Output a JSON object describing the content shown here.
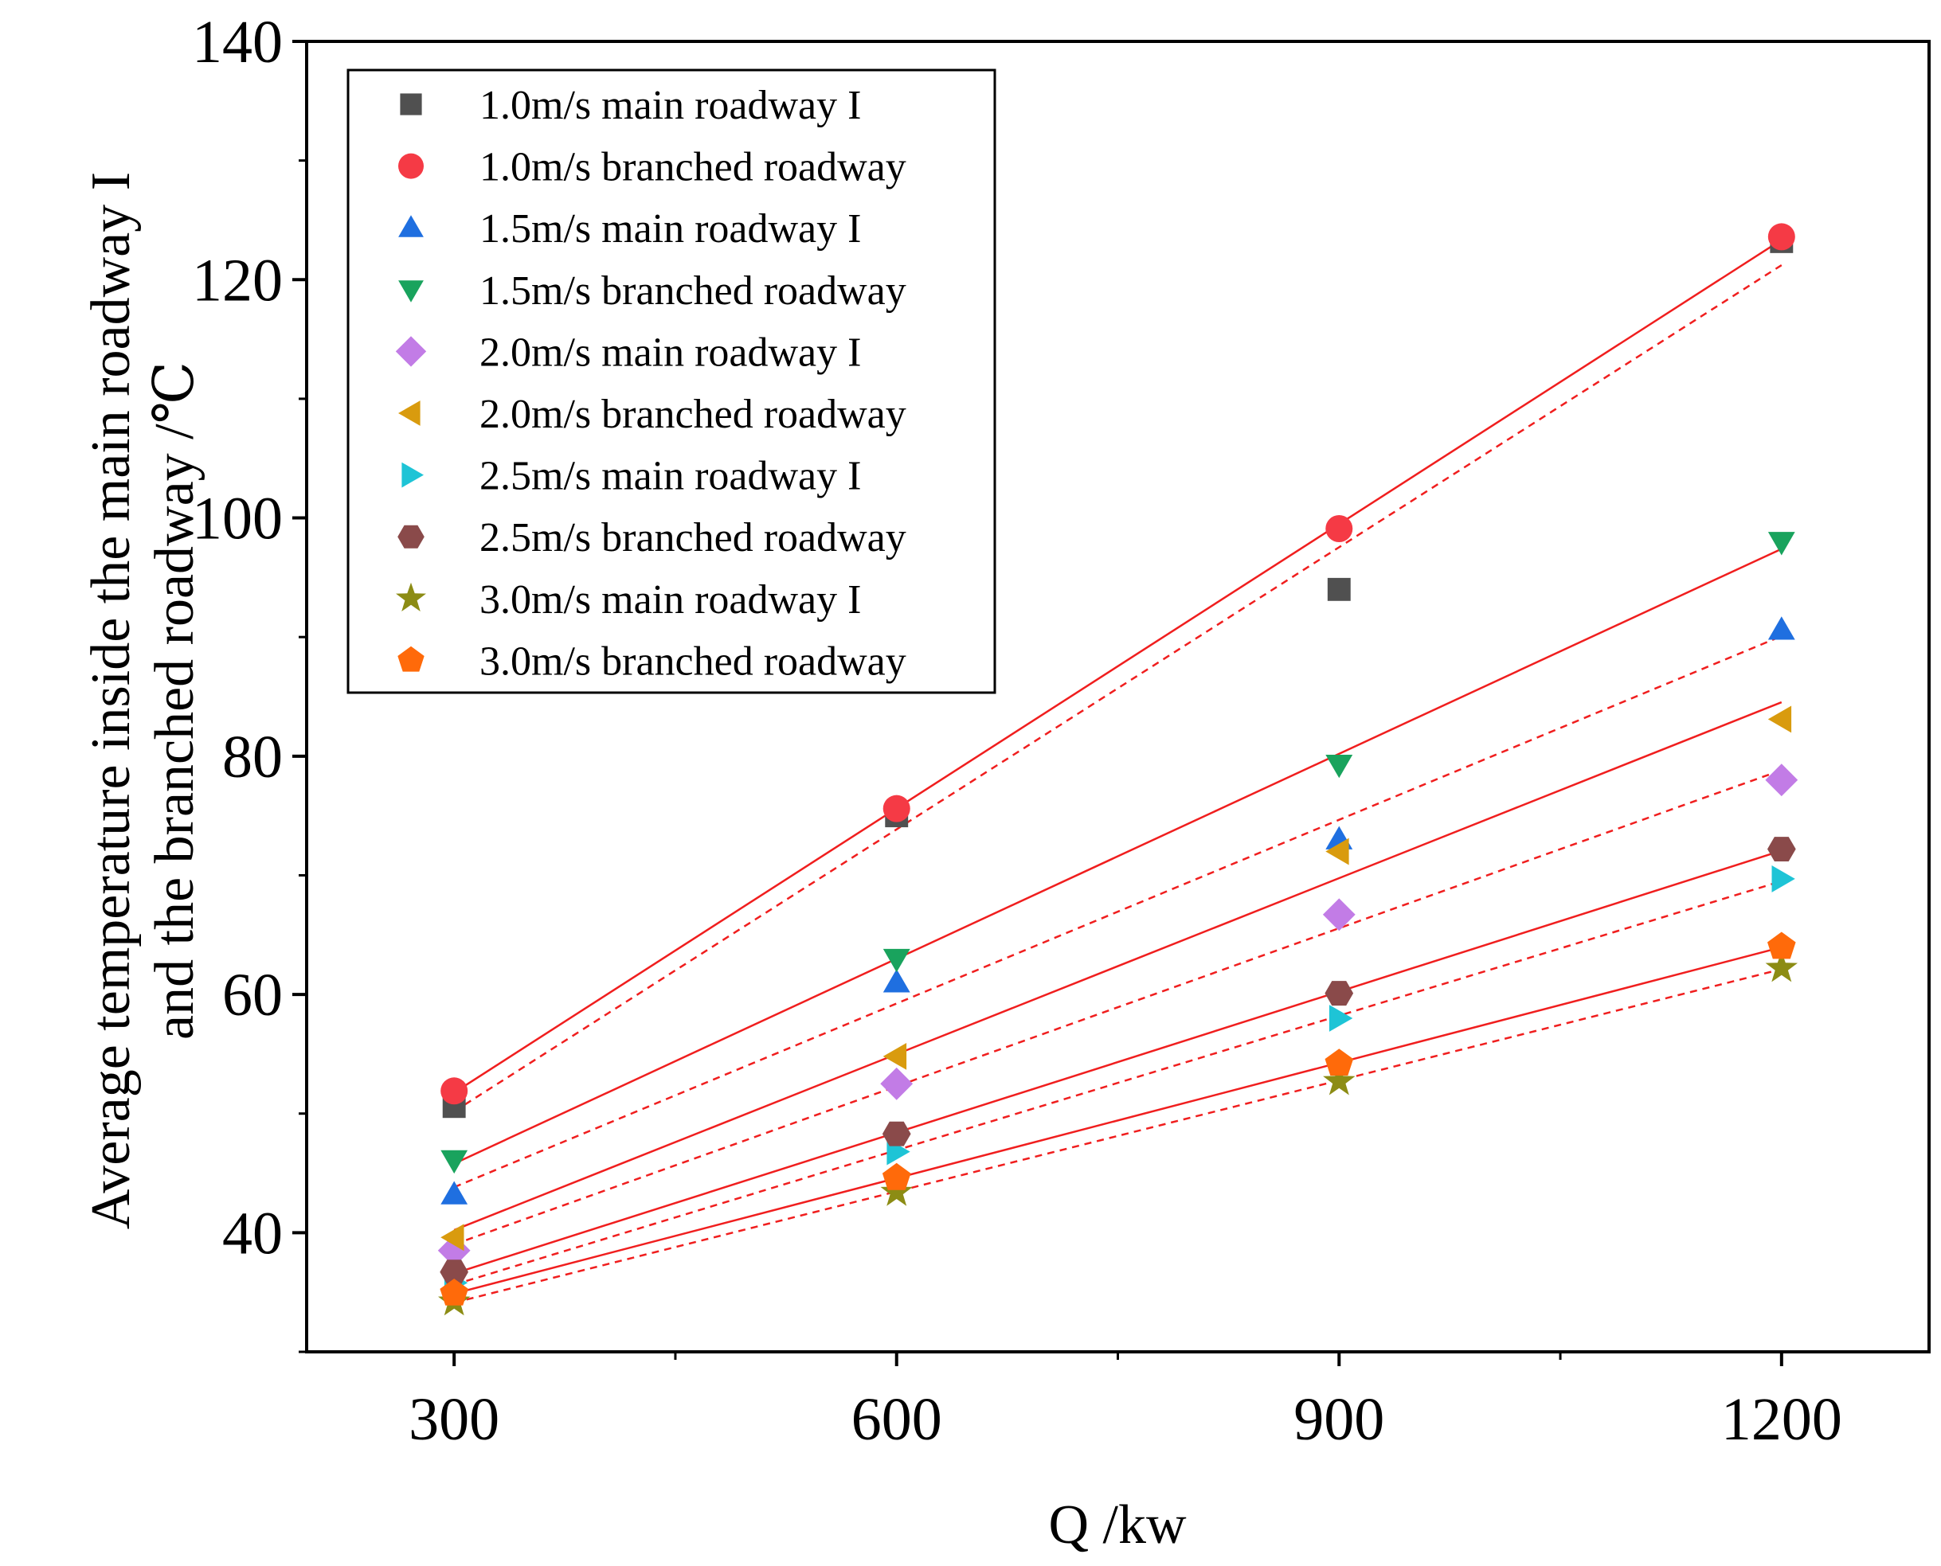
{
  "chart_data": {
    "type": "scatter",
    "title": "",
    "xlabel": "Q /kw",
    "ylabel_lines": [
      "Average temperature inside the main roadway I",
      "and the branched roadway /℃"
    ],
    "x": [
      300,
      600,
      900,
      1200
    ],
    "x_ticks": [
      300,
      600,
      900,
      1200
    ],
    "y_ticks": [
      40,
      60,
      80,
      100,
      120,
      140
    ],
    "xlim": [
      200,
      1300
    ],
    "ylim": [
      30,
      140
    ],
    "legend_position": "top-left",
    "grid": false,
    "series": [
      {
        "name": "1.0m/s main roadway I",
        "marker": "square",
        "color": "#505050",
        "values": [
          50.6,
          75.0,
          94.0,
          123.2
        ],
        "fit_style": "dashed"
      },
      {
        "name": "1.0m/s branched roadway",
        "marker": "circle",
        "color": "#f53a45",
        "values": [
          51.9,
          75.6,
          99.1,
          123.6
        ],
        "fit_style": "solid"
      },
      {
        "name": "1.5m/s main roadway I",
        "marker": "triangle-up",
        "color": "#1f6fe0",
        "values": [
          43.2,
          61.0,
          73.0,
          90.6
        ],
        "fit_style": "dashed"
      },
      {
        "name": "1.5m/s branched roadway",
        "marker": "triangle-down",
        "color": "#19a35d",
        "values": [
          46.1,
          63.0,
          79.3,
          98.0
        ],
        "fit_style": "solid"
      },
      {
        "name": "2.0m/s main roadway I",
        "marker": "diamond",
        "color": "#c27ce6",
        "values": [
          38.5,
          52.5,
          66.7,
          78.0
        ],
        "fit_style": "dashed"
      },
      {
        "name": "2.0m/s branched roadway",
        "marker": "triangle-left",
        "color": "#d99b0e",
        "values": [
          39.6,
          54.8,
          72.0,
          83.1
        ],
        "fit_style": "solid"
      },
      {
        "name": "2.5m/s main roadway I",
        "marker": "triangle-right",
        "color": "#1ec4d6",
        "values": [
          35.8,
          46.8,
          58.0,
          69.7
        ],
        "fit_style": "dashed"
      },
      {
        "name": "2.5m/s branched roadway",
        "marker": "hexagon",
        "color": "#8a4a4a",
        "values": [
          36.7,
          48.3,
          60.1,
          72.2
        ],
        "fit_style": "solid"
      },
      {
        "name": "3.0m/s main roadway I",
        "marker": "star",
        "color": "#8c8c14",
        "values": [
          34.2,
          43.4,
          52.7,
          62.2
        ],
        "fit_style": "dashed"
      },
      {
        "name": "3.0m/s branched roadway",
        "marker": "pentagon",
        "color": "#ff6a0a",
        "values": [
          34.9,
          44.6,
          54.2,
          64.0
        ],
        "fit_style": "solid"
      }
    ],
    "fit_color": "#f01e1e"
  }
}
